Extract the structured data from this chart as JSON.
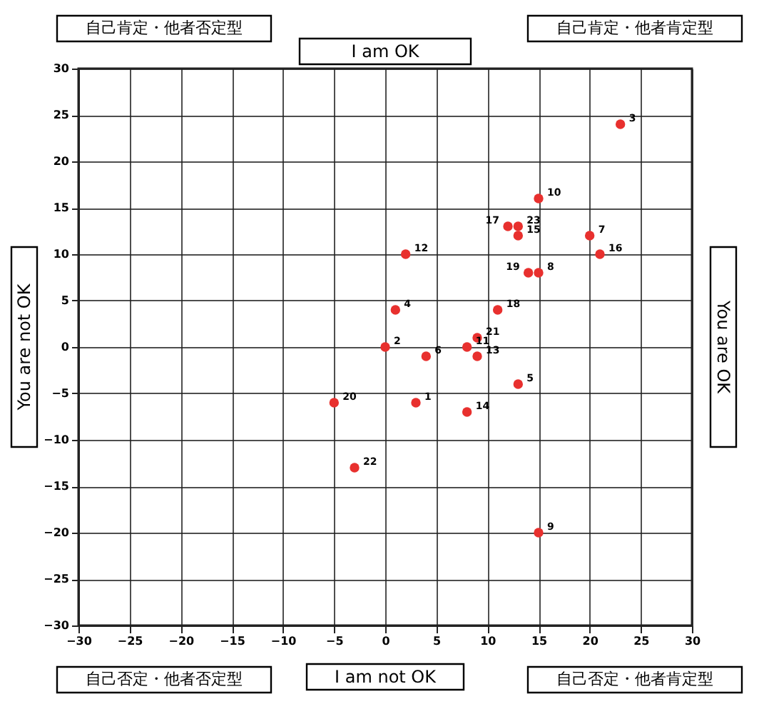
{
  "chart_data": {
    "type": "scatter",
    "title": "I am OK",
    "xlabel": "I am not OK",
    "ylabel": "You are not OK",
    "y2label": "You are OK",
    "x": [
      3,
      0,
      23,
      1,
      13,
      4,
      20,
      15,
      15,
      15,
      8,
      2,
      9,
      8,
      13,
      21,
      12,
      11,
      14,
      -5,
      9,
      -3,
      13
    ],
    "series": [
      {
        "color": "#e8302e",
        "values": [
          -6,
          0,
          24,
          4,
          -4,
          -1,
          12,
          8,
          -20,
          16,
          0,
          10,
          -1,
          -7,
          12,
          10,
          13,
          4,
          8,
          -6,
          1,
          -13,
          13
        ]
      }
    ],
    "marker": "circle",
    "xlim": [
      -30,
      30
    ],
    "ylim": [
      -30,
      30
    ],
    "xticks": [
      -30,
      -25,
      -20,
      -15,
      -10,
      -5,
      0,
      5,
      10,
      15,
      20,
      25,
      30
    ],
    "yticks": [
      -30,
      -25,
      -20,
      -15,
      -10,
      -5,
      0,
      5,
      10,
      15,
      20,
      25,
      30
    ],
    "grid": true,
    "annotations": [
      "自己肯定・他者否定型",
      "自己肯定・他者肯定型",
      "自己否定・他者否定型",
      "自己否定・他者肯定型",
      {
        "text": "1",
        "x": 3,
        "y": -6
      },
      {
        "text": "2",
        "x": 0,
        "y": 0
      },
      {
        "text": "3",
        "x": 23,
        "y": 24
      },
      {
        "text": "4",
        "x": 1,
        "y": 4
      },
      {
        "text": "5",
        "x": 13,
        "y": -4
      },
      {
        "text": "6",
        "x": 4,
        "y": -1
      },
      {
        "text": "7",
        "x": 20,
        "y": 12
      },
      {
        "text": "8",
        "x": 15,
        "y": 8
      },
      {
        "text": "9",
        "x": 15,
        "y": -20
      },
      {
        "text": "10",
        "x": 15,
        "y": 16
      },
      {
        "text": "11",
        "x": 8,
        "y": 0
      },
      {
        "text": "12",
        "x": 2,
        "y": 10
      },
      {
        "text": "13",
        "x": 9,
        "y": -1
      },
      {
        "text": "14",
        "x": 8,
        "y": -7
      },
      {
        "text": "15",
        "x": 13,
        "y": 12
      },
      {
        "text": "16",
        "x": 21,
        "y": 10
      },
      {
        "text": "17",
        "x": 12,
        "y": 13
      },
      {
        "text": "18",
        "x": 11,
        "y": 4
      },
      {
        "text": "19",
        "x": 14,
        "y": 8
      },
      {
        "text": "20",
        "x": -5,
        "y": -6
      },
      {
        "text": "21",
        "x": 9,
        "y": 1
      },
      {
        "text": "22",
        "x": -3,
        "y": -13
      },
      {
        "text": "23",
        "x": 13,
        "y": 13
      }
    ]
  }
}
